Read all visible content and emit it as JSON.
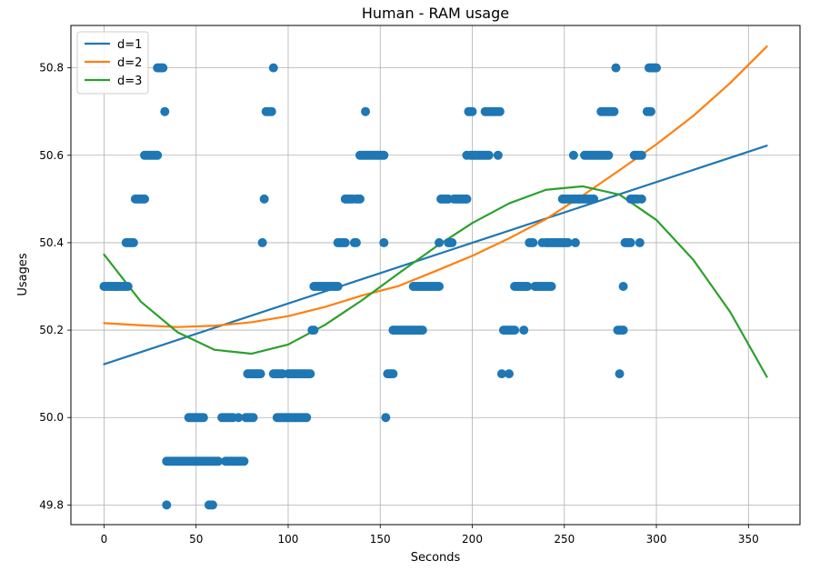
{
  "chart_data": {
    "type": "scatter",
    "title": "Human - RAM usage",
    "xlabel": "Seconds",
    "ylabel": "Usages",
    "xlim": [
      -18,
      378
    ],
    "ylim": [
      49.755,
      50.897
    ],
    "x_ticks": [
      0,
      50,
      100,
      150,
      200,
      250,
      300,
      350
    ],
    "y_ticks": [
      49.8,
      50.0,
      50.2,
      50.4,
      50.6,
      50.8
    ],
    "grid": true,
    "legend_position": "top-left",
    "colors": {
      "points": "#1f77b4",
      "d=1": "#1f77b4",
      "d=2": "#ff7f0e",
      "d=3": "#2ca02c"
    },
    "scatter": [
      {
        "y": 50.3,
        "x": [
          0,
          1,
          2,
          3,
          4,
          5,
          6,
          7,
          8,
          9,
          10,
          11,
          12,
          13
        ]
      },
      {
        "y": 50.4,
        "x": [
          12,
          13,
          14,
          15,
          16
        ]
      },
      {
        "y": 50.5,
        "x": [
          17,
          18,
          19,
          20,
          21,
          22
        ]
      },
      {
        "y": 50.6,
        "x": [
          22,
          23,
          24,
          25,
          26,
          27,
          28,
          29
        ]
      },
      {
        "y": 50.8,
        "x": [
          29,
          30,
          31,
          32
        ]
      },
      {
        "y": 50.7,
        "x": [
          33
        ]
      },
      {
        "y": 49.8,
        "x": [
          34
        ]
      },
      {
        "y": 49.9,
        "x": [
          34,
          35,
          36,
          37,
          38,
          39,
          40,
          41,
          42,
          43,
          44,
          45,
          46,
          47,
          48,
          49,
          50,
          51,
          52,
          53,
          54,
          55,
          56,
          57,
          58,
          59,
          60,
          61,
          62,
          66,
          67,
          68,
          69,
          70,
          71,
          72,
          73,
          74,
          75,
          76
        ]
      },
      {
        "y": 50.0,
        "x": [
          46,
          47,
          48,
          49,
          50,
          51,
          52,
          53,
          54,
          64,
          65,
          66,
          67,
          68,
          69,
          70,
          73,
          77,
          78,
          79,
          80,
          81,
          94,
          95,
          96,
          97,
          98,
          99,
          100,
          101,
          102,
          103,
          104,
          105,
          106,
          107,
          108,
          109,
          110
        ]
      },
      {
        "y": 49.8,
        "x": [
          57,
          58,
          59
        ]
      },
      {
        "y": 50.1,
        "x": [
          78,
          79,
          80,
          81,
          82,
          83,
          84,
          85,
          92,
          93,
          94,
          95,
          96,
          97,
          100,
          101,
          102,
          103,
          104,
          105,
          106,
          107,
          108,
          109,
          110,
          111,
          112
        ]
      },
      {
        "y": 50.4,
        "x": [
          86
        ]
      },
      {
        "y": 50.5,
        "x": [
          87
        ]
      },
      {
        "y": 50.7,
        "x": [
          88,
          89,
          90,
          91
        ]
      },
      {
        "y": 50.8,
        "x": [
          92
        ]
      },
      {
        "y": 50.2,
        "x": [
          113,
          114
        ]
      },
      {
        "y": 50.3,
        "x": [
          114,
          115,
          116,
          117,
          118,
          119,
          120,
          121,
          122,
          123,
          124,
          125,
          126,
          127
        ]
      },
      {
        "y": 50.4,
        "x": [
          127,
          128,
          129,
          130,
          131,
          136,
          137
        ]
      },
      {
        "y": 50.5,
        "x": [
          131,
          132,
          133,
          134,
          135,
          137,
          138,
          139
        ]
      },
      {
        "y": 50.6,
        "x": [
          139,
          140,
          141,
          142,
          143,
          144,
          145,
          146,
          147,
          148,
          149,
          150,
          151,
          152
        ]
      },
      {
        "y": 50.7,
        "x": [
          142
        ]
      },
      {
        "y": 50.4,
        "x": [
          152
        ]
      },
      {
        "y": 50.0,
        "x": [
          153
        ]
      },
      {
        "y": 50.1,
        "x": [
          154,
          155,
          156,
          157
        ]
      },
      {
        "y": 50.2,
        "x": [
          157,
          158,
          159,
          160,
          161,
          162,
          163,
          164,
          165,
          166,
          167,
          168,
          169,
          170,
          171,
          172,
          173
        ]
      },
      {
        "y": 50.3,
        "x": [
          168,
          169,
          170,
          171,
          172,
          173,
          174,
          175,
          176,
          177,
          178,
          179,
          180,
          181,
          182
        ]
      },
      {
        "y": 50.4,
        "x": [
          182,
          187,
          188,
          189
        ]
      },
      {
        "y": 50.5,
        "x": [
          183,
          184,
          185,
          186,
          187,
          190,
          191,
          192,
          193,
          194,
          195,
          196,
          197
        ]
      },
      {
        "y": 50.6,
        "x": [
          197,
          199,
          200,
          201,
          202,
          203,
          204,
          205,
          206,
          207,
          208,
          209,
          214
        ]
      },
      {
        "y": 50.7,
        "x": [
          198,
          199,
          200,
          207,
          208,
          209,
          210,
          211,
          212,
          213,
          214,
          215
        ]
      },
      {
        "y": 50.1,
        "x": [
          216,
          220
        ]
      },
      {
        "y": 50.2,
        "x": [
          217,
          218,
          219,
          220,
          221,
          222,
          223,
          228
        ]
      },
      {
        "y": 50.3,
        "x": [
          223,
          224,
          225,
          226,
          227,
          228,
          229,
          230,
          234,
          235,
          236,
          237,
          238,
          239,
          240,
          241,
          242,
          243
        ]
      },
      {
        "y": 50.4,
        "x": [
          231,
          232,
          233,
          238,
          240,
          241,
          242,
          243,
          244,
          245,
          246,
          247,
          248,
          249,
          250,
          251,
          252,
          256
        ]
      },
      {
        "y": 50.5,
        "x": [
          249,
          250,
          251,
          252,
          253,
          254,
          255,
          256,
          257,
          258,
          259,
          260,
          261,
          262,
          263,
          264,
          265,
          266,
          292
        ]
      },
      {
        "y": 50.6,
        "x": [
          255,
          261,
          262,
          263,
          264,
          265,
          266,
          267,
          268,
          269,
          270,
          271,
          272,
          273,
          274,
          288,
          289,
          290,
          291,
          292
        ]
      },
      {
        "y": 50.7,
        "x": [
          270,
          271,
          272,
          273,
          274,
          275,
          276,
          277,
          295,
          296,
          297
        ]
      },
      {
        "y": 50.8,
        "x": [
          278,
          296,
          297,
          298,
          299,
          300
        ]
      },
      {
        "y": 50.1,
        "x": [
          280
        ]
      },
      {
        "y": 50.2,
        "x": [
          279,
          280,
          281,
          282
        ]
      },
      {
        "y": 50.3,
        "x": [
          282
        ]
      },
      {
        "y": 50.4,
        "x": [
          283,
          284,
          285,
          286,
          291
        ]
      },
      {
        "y": 50.5,
        "x": [
          286,
          287,
          288,
          289,
          290
        ]
      }
    ],
    "series": [
      {
        "name": "d=1",
        "x": [
          0,
          360
        ],
        "y": [
          50.122,
          50.622
        ]
      },
      {
        "name": "d=2",
        "x": [
          0,
          20,
          40,
          60,
          80,
          100,
          120,
          140,
          160,
          180,
          200,
          220,
          240,
          260,
          280,
          300,
          320,
          340,
          360
        ],
        "y": [
          50.216,
          50.211,
          50.207,
          50.21,
          50.218,
          50.232,
          50.253,
          50.279,
          50.301,
          50.335,
          50.37,
          50.41,
          50.454,
          50.508,
          50.566,
          50.625,
          50.69,
          50.765,
          50.849
        ]
      },
      {
        "name": "d=3",
        "x": [
          0,
          20,
          40,
          60,
          80,
          100,
          120,
          140,
          160,
          180,
          200,
          220,
          240,
          260,
          280,
          300,
          320,
          340,
          360
        ],
        "y": [
          50.373,
          50.265,
          50.195,
          50.155,
          50.146,
          50.167,
          50.212,
          50.268,
          50.33,
          50.39,
          50.445,
          50.49,
          50.521,
          50.529,
          50.51,
          50.452,
          50.361,
          50.242,
          50.093
        ]
      }
    ]
  }
}
